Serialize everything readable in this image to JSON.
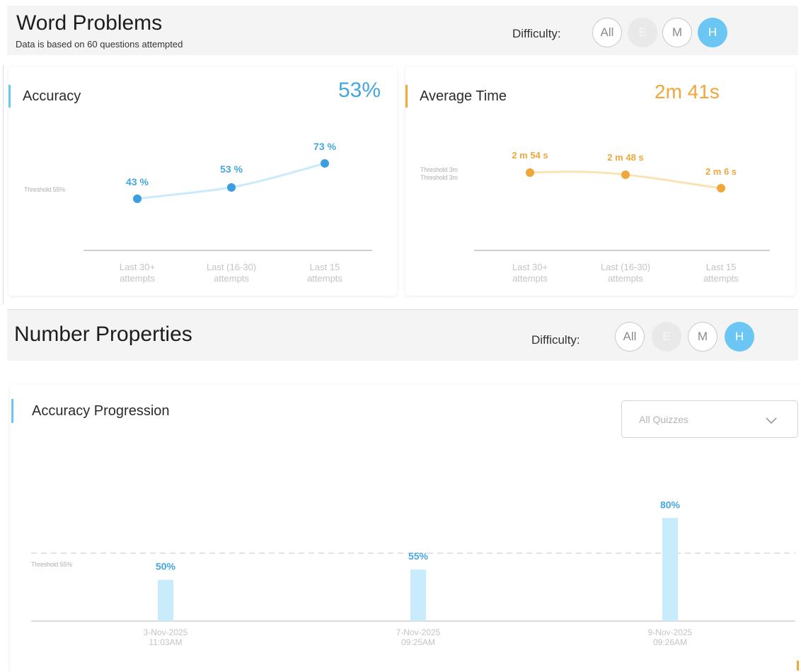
{
  "word_problems": {
    "title": "Word Problems",
    "subtitle": "Data is based on 60 questions attempted",
    "difficulty_label": "Difficulty:",
    "difficulty_options": [
      "All",
      "E",
      "M",
      "H"
    ],
    "selected_difficulty": "H",
    "accuracy_card": {
      "title": "Accuracy",
      "value": "53%",
      "threshold_label": "Threshold 55%",
      "colors": {
        "accent": "#6cc6f4",
        "value": "#45a7e0",
        "line": "#c9ebfb",
        "point": "#3b9ee2",
        "label": "#45a7e0"
      }
    },
    "time_card": {
      "title": "Average Time",
      "value": "2m 41s",
      "threshold_label_1": "Threshold 3m",
      "threshold_label_2": "Threshold 3m",
      "colors": {
        "accent": "#f0a73a",
        "value": "#f0a73a",
        "line": "#fbe2b5",
        "point": "#f0a73a",
        "label": "#f0a73a"
      }
    }
  },
  "number_properties": {
    "title": "Number Properties",
    "difficulty_label": "Difficulty:",
    "difficulty_options": [
      "All",
      "E",
      "M",
      "H"
    ],
    "selected_difficulty": "H",
    "progression_card": {
      "title": "Accuracy Progression",
      "dropdown_value": "All Quizzes",
      "threshold_label": "Threshold 55%",
      "colors": {
        "accent": "#6cc6f4",
        "bar": "#c9ecfd",
        "label": "#45a7e0"
      }
    }
  },
  "chart_data": [
    {
      "type": "line",
      "title": "Accuracy",
      "categories": [
        [
          "Last 30+",
          "attempts"
        ],
        [
          "Last (16-30)",
          "attempts"
        ],
        [
          "Last 15",
          "attempts"
        ]
      ],
      "values": [
        43,
        53,
        73
      ],
      "value_labels": [
        "43 %",
        "53 %",
        "73 %"
      ],
      "threshold": 55,
      "ylim": [
        0,
        100
      ]
    },
    {
      "type": "line",
      "title": "Average Time",
      "categories": [
        [
          "Last 30+",
          "attempts"
        ],
        [
          "Last (16-30)",
          "attempts"
        ],
        [
          "Last 15",
          "attempts"
        ]
      ],
      "values": [
        174,
        168,
        126
      ],
      "value_labels": [
        "2 m 54 s",
        "2 m 48 s",
        "2 m 6 s"
      ],
      "unit": "seconds",
      "threshold": 180
    },
    {
      "type": "bar",
      "title": "Accuracy Progression",
      "categories": [
        [
          "3-Nov-2025",
          "11:03AM"
        ],
        [
          "7-Nov-2025",
          "09:25AM"
        ],
        [
          "9-Nov-2025",
          "09:26AM"
        ]
      ],
      "values": [
        50,
        55,
        80
      ],
      "value_labels": [
        "50%",
        "55%",
        "80%"
      ],
      "threshold": 55,
      "ylim": [
        0,
        100
      ]
    }
  ]
}
